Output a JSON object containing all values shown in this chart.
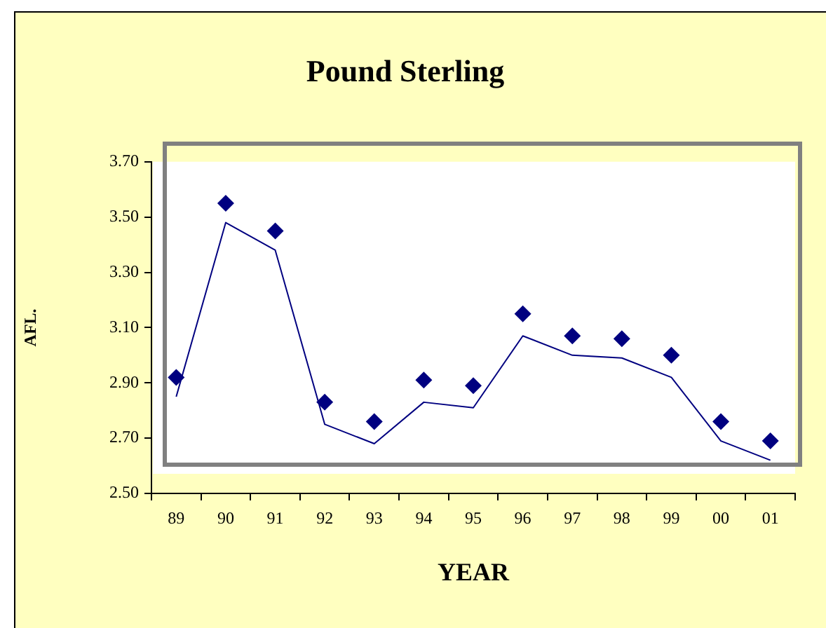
{
  "chart_data": {
    "type": "line",
    "title": "Pound Sterling",
    "xlabel": "YEAR",
    "ylabel": "AFL.",
    "categories": [
      "89",
      "90",
      "91",
      "92",
      "93",
      "94",
      "95",
      "96",
      "97",
      "98",
      "99",
      "00",
      "01"
    ],
    "ylim": [
      2.5,
      3.7
    ],
    "yticks": [
      {
        "value": 2.5,
        "label": "2.50"
      },
      {
        "value": 2.7,
        "label": "2.70"
      },
      {
        "value": 2.9,
        "label": "2.90"
      },
      {
        "value": 3.1,
        "label": "3.10"
      },
      {
        "value": 3.3,
        "label": "3.30"
      },
      {
        "value": 3.5,
        "label": "3.50"
      },
      {
        "value": 3.7,
        "label": "3.70"
      }
    ],
    "series": [
      {
        "color": "#000080",
        "marker": "none",
        "values": [
          2.85,
          3.48,
          3.38,
          2.75,
          2.68,
          2.83,
          2.81,
          3.07,
          3.0,
          2.99,
          2.92,
          2.69,
          2.62
        ]
      },
      {
        "type": "scatter",
        "color": "#000080",
        "marker": "diamond",
        "values": [
          2.92,
          3.55,
          3.45,
          2.83,
          2.76,
          2.91,
          2.89,
          3.15,
          3.07,
          3.06,
          3.0,
          2.76,
          2.69
        ]
      }
    ]
  }
}
